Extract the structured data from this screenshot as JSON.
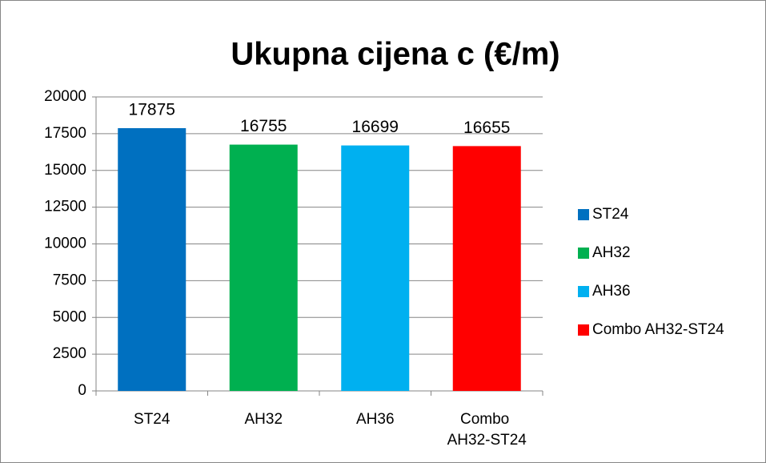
{
  "chart_data": {
    "type": "bar",
    "title": "Ukupna cijena c (€/m)",
    "categories": [
      "ST24",
      "AH32",
      "AH36",
      "Combo AH32-ST24"
    ],
    "values": [
      17875,
      16755,
      16699,
      16655
    ],
    "colors": [
      "#0070c0",
      "#00b050",
      "#00b0f0",
      "#ff0000"
    ],
    "ylim": [
      0,
      20000
    ],
    "yticks": [
      0,
      2500,
      5000,
      7500,
      10000,
      12500,
      15000,
      17500,
      20000
    ],
    "grid": true,
    "legend": "right"
  }
}
